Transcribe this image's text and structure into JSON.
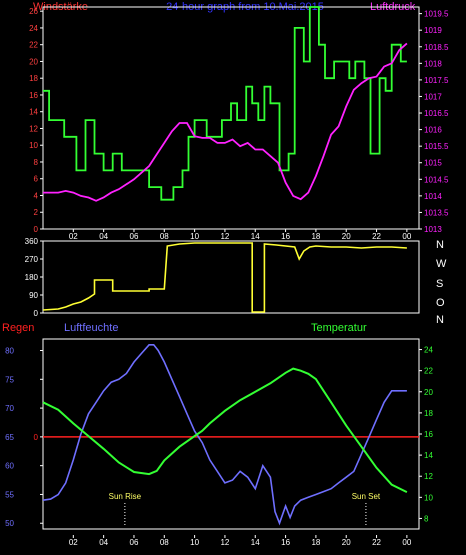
{
  "header": {
    "left_label": "Windstärke",
    "title": "24-hour graph from 10.Mai.2015",
    "right_label": "Luftdruck"
  },
  "colors": {
    "background": "#000000",
    "frame": "#ffffff",
    "wind": "#33ff33",
    "pressure": "#ff22ff",
    "direction": "#ffff33",
    "humidity": "#6f6fff",
    "temperature": "#33ff33",
    "rain": "#ff2020",
    "left_ticks": "#ff4040",
    "title": "#3333ff"
  },
  "time_axis": {
    "labels": [
      "02",
      "04",
      "06",
      "08",
      "10",
      "12",
      "14",
      "16",
      "18",
      "20",
      "22",
      "00"
    ],
    "hours": [
      2,
      4,
      6,
      8,
      10,
      12,
      14,
      16,
      18,
      20,
      22,
      24
    ],
    "range": [
      0,
      24.8
    ]
  },
  "chart_data": [
    {
      "id": "wind_pressure",
      "type": "line",
      "left_axis": {
        "label": "Windstärke",
        "ticks": [
          0,
          2,
          4,
          6,
          8,
          10,
          12,
          14,
          16,
          18,
          20,
          22,
          24,
          26
        ],
        "ylim": [
          0,
          26.5
        ]
      },
      "right_axis": {
        "label": "Luftdruck",
        "ticks": [
          "1013",
          "1013.5",
          "1014",
          "1014.5",
          "1015",
          "1015.5",
          "1016",
          "1016.5",
          "1017",
          "1017.5",
          "1018",
          "1018.5",
          "1019",
          "1019.5"
        ],
        "ylim": [
          1013,
          1019.7
        ]
      },
      "series": [
        {
          "key": "wind",
          "shape": "step",
          "x": [
            0,
            0.4,
            0.4,
            1.4,
            1.4,
            2.2,
            2.2,
            2.8,
            2.8,
            3.4,
            3.4,
            4,
            4,
            4.6,
            4.6,
            5.2,
            5.2,
            7,
            7,
            7.8,
            7.8,
            8.6,
            8.6,
            9.2,
            9.2,
            9.6,
            9.6,
            10,
            10,
            10.8,
            10.8,
            11.8,
            11.8,
            12.4,
            12.4,
            12.8,
            12.8,
            13.4,
            13.4,
            13.8,
            13.8,
            14.2,
            14.2,
            14.6,
            14.6,
            15,
            15,
            15.6,
            15.6,
            16.2,
            16.2,
            16.6,
            16.6,
            17.2,
            17.2,
            17.6,
            17.6,
            18.2,
            18.2,
            18.6,
            18.6,
            19.2,
            19.2,
            20.2,
            20.2,
            20.6,
            20.6,
            21.2,
            21.2,
            21.6,
            21.6,
            22.2,
            22.2,
            22.6,
            22.6,
            23,
            23,
            23.6,
            23.6,
            24
          ],
          "y": [
            16.5,
            16.5,
            13,
            13,
            11,
            11,
            7,
            7,
            13,
            13,
            9,
            9,
            7,
            7,
            9,
            9,
            7,
            7,
            5,
            5,
            3.5,
            3.5,
            5,
            5,
            7,
            7,
            11,
            11,
            13,
            13,
            11,
            11,
            13,
            13,
            15,
            15,
            13,
            13,
            17,
            17,
            15,
            15,
            13,
            13,
            17,
            17,
            15,
            15,
            7,
            7,
            9,
            9,
            24,
            24,
            20,
            20,
            26.5,
            26.5,
            22,
            22,
            18,
            18,
            20,
            20,
            18,
            18,
            20,
            20,
            18,
            18,
            9,
            9,
            18,
            18,
            16.5,
            16.5,
            22,
            22,
            20,
            20
          ]
        },
        {
          "key": "pressure",
          "shape": "line",
          "x": [
            0,
            1,
            1.5,
            2,
            2.5,
            3,
            3.5,
            4,
            4.5,
            5,
            5.5,
            6,
            7,
            7.5,
            8,
            8.5,
            9,
            9.5,
            10,
            10.5,
            11,
            11.5,
            12,
            12.5,
            13,
            13.5,
            14,
            14.5,
            15,
            15.5,
            16,
            16.5,
            17,
            17.5,
            18,
            18.5,
            19,
            19.5,
            20,
            20.5,
            21,
            21.5,
            22,
            22.5,
            23,
            23.5,
            24
          ],
          "y": [
            1014.1,
            1014.1,
            1014.15,
            1014.1,
            1014.0,
            1013.95,
            1013.85,
            1013.95,
            1014.1,
            1014.2,
            1014.35,
            1014.5,
            1014.9,
            1015.25,
            1015.6,
            1015.95,
            1016.2,
            1016.2,
            1015.8,
            1015.75,
            1015.75,
            1015.6,
            1015.6,
            1015.7,
            1015.5,
            1015.6,
            1015.4,
            1015.4,
            1015.2,
            1015.0,
            1014.4,
            1014.0,
            1013.9,
            1014.1,
            1014.6,
            1015.2,
            1015.85,
            1016.1,
            1016.7,
            1017.2,
            1017.4,
            1017.55,
            1017.6,
            1017.9,
            1018.0,
            1018.4,
            1018.6
          ]
        }
      ]
    },
    {
      "id": "wind_direction",
      "type": "line",
      "y_axis": {
        "ticks": [
          0,
          90,
          180,
          270,
          360
        ],
        "ylim": [
          0,
          360
        ]
      },
      "right_labels": [
        "N",
        "W",
        "S",
        "O",
        "N"
      ],
      "series": [
        {
          "key": "direction",
          "shape": "step",
          "x": [
            0,
            1,
            1.5,
            2,
            2.5,
            3,
            3.4,
            3.4,
            4.6,
            4.6,
            7,
            7,
            7.5,
            8,
            8.2,
            9,
            10,
            11,
            12,
            12.5,
            13.8,
            13.8,
            14.6,
            14.6,
            15.4,
            16.6,
            16.9,
            17.2,
            17.6,
            18,
            19,
            20,
            21,
            22,
            23,
            24
          ],
          "y": [
            15,
            20,
            30,
            45,
            55,
            75,
            95,
            165,
            165,
            110,
            110,
            120,
            120,
            120,
            335,
            345,
            350,
            350,
            350,
            350,
            350,
            5,
            5,
            345,
            340,
            330,
            270,
            310,
            330,
            335,
            330,
            330,
            325,
            330,
            330,
            325
          ]
        }
      ]
    },
    {
      "id": "humidity_temperature",
      "type": "line",
      "left_labels": {
        "rain": "Regen",
        "humidity": "Luftfeuchte",
        "temperature": "Temperatur"
      },
      "left_axis": {
        "ticks": [
          50,
          55,
          60,
          65,
          70,
          75,
          80
        ],
        "ylim": [
          49,
          82
        ]
      },
      "right_axis": {
        "ticks": [
          8,
          10,
          12,
          14,
          16,
          18,
          20,
          22,
          24
        ],
        "ylim": [
          7,
          25
        ]
      },
      "rain_axis": {
        "ticks": [
          0
        ],
        "value": 0
      },
      "annotations": [
        {
          "label": "Sun Rise",
          "x": 5.4
        },
        {
          "label": "Sun Set",
          "x": 21.3
        }
      ],
      "series": [
        {
          "key": "humidity",
          "shape": "step",
          "x": [
            0,
            0.5,
            1,
            1.5,
            2,
            2.5,
            3,
            3.5,
            4,
            4.5,
            5,
            5.5,
            6,
            6.5,
            7,
            7.3,
            7.6,
            8,
            8.5,
            9,
            9.5,
            10,
            10.5,
            11,
            11.5,
            12,
            12.5,
            13,
            13.5,
            14,
            14.5,
            15,
            15.3,
            15.6,
            16,
            16.3,
            16.6,
            17,
            17.5,
            18,
            18.5,
            19,
            19.5,
            20,
            20.5,
            21,
            21.5,
            22,
            22.5,
            23,
            23.5,
            24
          ],
          "y": [
            54,
            54.2,
            55,
            57,
            61,
            65.5,
            69,
            71,
            73,
            74.5,
            75,
            76,
            78,
            79.5,
            81,
            81,
            80,
            78,
            75,
            72,
            69,
            66,
            64,
            61,
            59,
            57,
            57.5,
            59,
            58,
            56,
            60,
            58,
            52,
            50,
            53,
            51,
            53,
            54,
            54.5,
            55,
            55.5,
            56,
            57,
            58,
            59,
            62,
            65,
            68,
            71,
            73,
            73,
            73
          ]
        },
        {
          "key": "temperature",
          "shape": "line",
          "x": [
            0,
            1,
            2,
            3,
            4,
            5,
            6,
            7,
            7.5,
            8,
            9,
            10,
            10.5,
            11,
            12,
            13,
            14,
            15,
            16,
            16.5,
            17,
            17.5,
            18,
            19,
            20,
            21,
            22,
            23,
            24
          ],
          "y": [
            19,
            18.3,
            17,
            15.8,
            14.6,
            13.3,
            12.4,
            12.2,
            12.5,
            13.5,
            14.8,
            15.8,
            16.3,
            17,
            18.2,
            19.2,
            20,
            20.8,
            21.8,
            22.2,
            22,
            21.7,
            21.2,
            19,
            16.8,
            14.8,
            12.8,
            11.2,
            10.5
          ]
        }
      ]
    }
  ]
}
